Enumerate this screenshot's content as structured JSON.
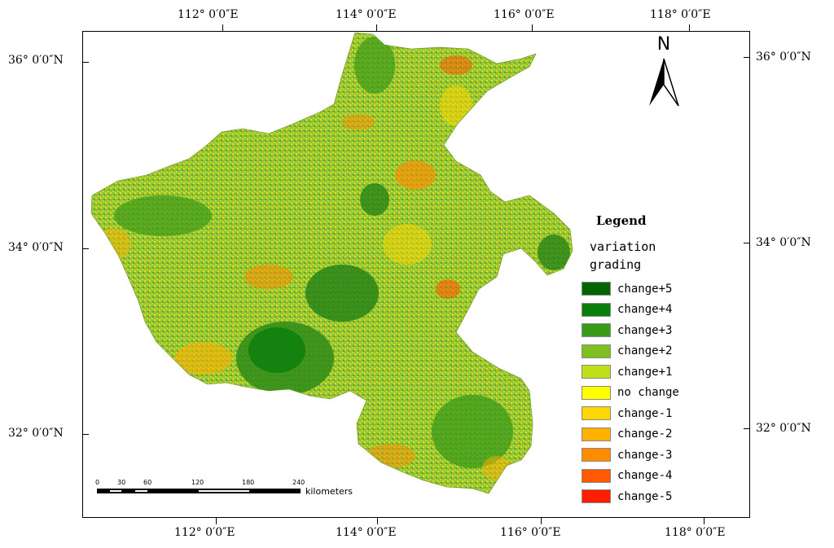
{
  "map": {
    "top_lon_labels": [
      "112° 0′0″E",
      "114° 0′0″E",
      "116° 0′0″E",
      "118° 0′0″E"
    ],
    "bottom_lon_labels": [
      "112° 0′0″E",
      "114° 0′0″E",
      "116° 0′0″E",
      "118° 0′0″E"
    ],
    "left_lat_labels": [
      "36° 0′0″N",
      "34° 0′0″N",
      "32° 0′0″N"
    ],
    "right_lat_labels": [
      "36° 0′0″N",
      "34° 0′0″N",
      "32° 0′0″N"
    ],
    "north_label": "N"
  },
  "legend": {
    "title": "Legend",
    "subtitle_line1": "variation",
    "subtitle_line2": "grading",
    "items": [
      {
        "label": "change+5",
        "color": "#006400"
      },
      {
        "label": "change+4",
        "color": "#0a7d0a"
      },
      {
        "label": "change+3",
        "color": "#3a9a1a"
      },
      {
        "label": "change+2",
        "color": "#7fbf1f"
      },
      {
        "label": "change+1",
        "color": "#c2e01a"
      },
      {
        "label": "no change",
        "color": "#ffff00"
      },
      {
        "label": "change-1",
        "color": "#ffd700"
      },
      {
        "label": "change-2",
        "color": "#ffb000"
      },
      {
        "label": "change-3",
        "color": "#ff8c00"
      },
      {
        "label": "change-4",
        "color": "#ff5a00"
      },
      {
        "label": "change-5",
        "color": "#ff1e00"
      }
    ]
  },
  "scale_bar": {
    "ticks": [
      "0",
      "30",
      "60",
      "120",
      "180",
      "240"
    ],
    "unit": "kilometers"
  }
}
